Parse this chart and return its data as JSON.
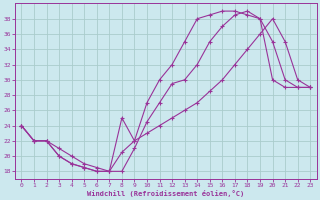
{
  "xlabel": "Windchill (Refroidissement éolien,°C)",
  "bg_color": "#cce8ee",
  "grid_color": "#aacccc",
  "line_color": "#993399",
  "xlim": [
    -0.5,
    23.5
  ],
  "ylim": [
    17,
    40
  ],
  "yticks": [
    18,
    20,
    22,
    24,
    26,
    28,
    30,
    32,
    34,
    36,
    38
  ],
  "xticks": [
    0,
    1,
    2,
    3,
    4,
    5,
    6,
    7,
    8,
    9,
    10,
    11,
    12,
    13,
    14,
    15,
    16,
    17,
    18,
    19,
    20,
    21,
    22,
    23
  ],
  "line1_x": [
    0,
    1,
    2,
    3,
    4,
    5,
    6,
    7,
    8,
    9,
    10,
    11,
    12,
    13,
    14,
    15,
    16,
    17,
    18,
    19,
    20,
    21,
    22,
    23
  ],
  "line1_y": [
    24,
    22,
    22,
    20,
    19,
    18.5,
    18,
    18,
    18,
    21,
    24.5,
    27,
    29.5,
    30,
    32,
    35,
    37,
    38.5,
    39,
    38,
    35,
    30,
    29,
    29
  ],
  "line2_x": [
    0,
    1,
    2,
    3,
    4,
    5,
    6,
    7,
    8,
    9,
    10,
    11,
    12,
    13,
    14,
    15,
    16,
    17,
    18,
    19,
    20,
    21,
    22,
    23
  ],
  "line2_y": [
    24,
    22,
    22,
    20,
    19,
    18.5,
    18,
    18,
    25,
    22,
    27,
    30,
    32,
    35,
    38,
    38.5,
    39,
    39,
    38.5,
    38,
    30,
    29,
    29,
    29
  ],
  "line3_x": [
    0,
    1,
    2,
    3,
    4,
    5,
    6,
    7,
    8,
    9,
    10,
    11,
    12,
    13,
    14,
    15,
    16,
    17,
    18,
    19,
    20,
    21,
    22,
    23
  ],
  "line3_y": [
    24,
    22,
    22,
    21,
    20,
    19,
    18.5,
    18,
    20.5,
    22,
    23,
    24,
    25,
    26,
    27,
    28.5,
    30,
    32,
    34,
    36,
    38,
    35,
    30,
    29
  ]
}
